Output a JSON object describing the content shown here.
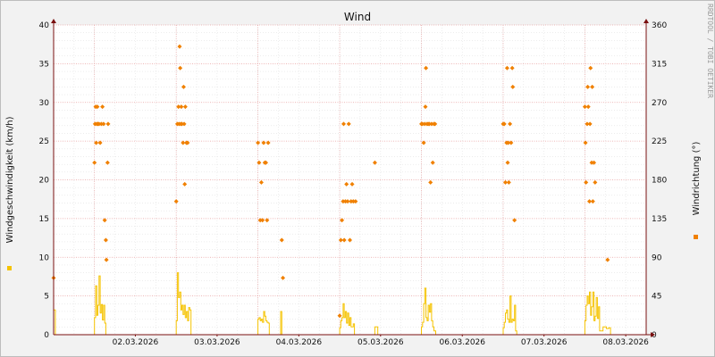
{
  "chart_data": {
    "type": "line",
    "title": "Wind",
    "watermark": "RRDTOOL / TOBI OETIKER",
    "ylabel_left": "Windgeschwindigkeit (km/h)",
    "ylabel_right": "Windrichtung (°)",
    "ylim_left": [
      0,
      40
    ],
    "ylim_right": [
      0,
      360
    ],
    "yticks_left": [
      0,
      5,
      10,
      15,
      20,
      25,
      30,
      35,
      40
    ],
    "yticks_right": [
      0,
      45,
      90,
      135,
      180,
      225,
      270,
      315,
      360
    ],
    "x_start": "01.03.2026 12:00",
    "x_end": "08.03.2026 18:00",
    "xticks": [
      "02.03.2026",
      "03.03.2026",
      "04.03.2026",
      "05.03.2026",
      "06.03.2026",
      "07.03.2026",
      "08.03.2026"
    ],
    "grid": true,
    "colors": {
      "speed": "#f5c300",
      "direction": "#f08000",
      "grid_major": "#e8a0a0",
      "grid_minor": "#e2e2e2",
      "axis": "#7a1010"
    },
    "series": [
      {
        "kind": "speed",
        "axis": "left",
        "x": [
          "01.03 12:00",
          "01.03 12:30",
          "02.03 00:00",
          "02.03 00:20",
          "02.03 00:40",
          "02.03 01:00",
          "02.03 01:20",
          "02.03 01:40",
          "02.03 02:00",
          "02.03 02:20",
          "02.03 02:40",
          "02.03 03:00",
          "02.03 03:20",
          "02.03 03:40",
          "02.03 04:00",
          "02.03 04:20",
          "02.03 04:40",
          "03.03 00:00",
          "03.03 00:20",
          "03.03 00:40",
          "03.03 01:00",
          "03.03 01:20",
          "03.03 01:40",
          "03.03 02:00",
          "03.03 02:20",
          "03.03 02:40",
          "03.03 03:00",
          "03.03 03:20",
          "03.03 03:40",
          "03.03 04:00",
          "03.03 04:20",
          "04.03 00:00",
          "04.03 00:20",
          "04.03 00:40",
          "04.03 01:00",
          "04.03 01:20",
          "04.03 01:40",
          "04.03 02:00",
          "04.03 02:20",
          "04.03 02:40",
          "04.03 03:00",
          "04.03 03:20",
          "04.03 06:40",
          "04.03 07:00",
          "05.03 00:00",
          "05.03 00:20",
          "05.03 00:40",
          "05.03 01:00",
          "05.03 01:20",
          "05.03 01:40",
          "05.03 02:00",
          "05.03 02:20",
          "05.03 02:40",
          "05.03 03:00",
          "05.03 03:20",
          "05.03 04:00",
          "05.03 04:20",
          "05.03 10:20",
          "05.03 10:40",
          "06.03 00:00",
          "06.03 00:20",
          "06.03 00:40",
          "06.03 01:00",
          "06.03 01:20",
          "06.03 01:40",
          "06.03 02:00",
          "06.03 02:20",
          "06.03 02:40",
          "06.03 03:00",
          "06.03 03:20",
          "06.03 03:40",
          "07.03 00:00",
          "07.03 00:20",
          "07.03 00:40",
          "07.03 01:00",
          "07.03 01:20",
          "07.03 01:40",
          "07.03 02:00",
          "07.03 02:20",
          "07.03 02:40",
          "07.03 03:00",
          "07.03 03:20",
          "07.03 03:40",
          "07.03 04:00",
          "08.03 00:00",
          "08.03 00:20",
          "08.03 00:40",
          "08.03 01:00",
          "08.03 01:20",
          "08.03 01:40",
          "08.03 02:00",
          "08.03 02:20",
          "08.03 02:40",
          "08.03 03:00",
          "08.03 03:20",
          "08.03 03:40",
          "08.03 04:00",
          "08.03 04:20",
          "08.03 05:20",
          "08.03 06:20",
          "08.03 07:00"
        ],
        "values": [
          3.2,
          0,
          2.2,
          6.3,
          2.5,
          3.8,
          7.6,
          2.8,
          3.9,
          1.9,
          3.8,
          1.5,
          0,
          0,
          0,
          0,
          0,
          1.8,
          8.0,
          4.8,
          5.5,
          3.2,
          3.8,
          2.6,
          3.8,
          2.2,
          3.0,
          1.8,
          3.5,
          3.2,
          0,
          2.0,
          2.2,
          1.8,
          2.0,
          1.6,
          3.0,
          2.4,
          1.8,
          1.6,
          1.5,
          0,
          3.0,
          0,
          0.9,
          1.8,
          2.2,
          4.0,
          2.2,
          3.0,
          1.5,
          2.8,
          1.2,
          2.2,
          1.0,
          1.4,
          0,
          1.0,
          1.0,
          1.0,
          1.6,
          4.0,
          6.0,
          2.2,
          1.8,
          3.8,
          2.9,
          4.0,
          1.8,
          1.0,
          0.5,
          0.9,
          1.6,
          2.8,
          3.2,
          2.0,
          1.6,
          5.0,
          1.6,
          2.0,
          1.8,
          3.8,
          0.5,
          0,
          1.8,
          3.8,
          5.0,
          4.0,
          5.5,
          2.5,
          3.6,
          5.5,
          1.8,
          2.4,
          4.8,
          2.1,
          3.6,
          0.5,
          1.0,
          0.8,
          0.9
        ]
      },
      {
        "kind": "direction",
        "axis": "right",
        "points": [
          [
            "01.03 12:00",
            66
          ],
          [
            "02.03 00:00",
            200
          ],
          [
            "02.03 00:10",
            245
          ],
          [
            "02.03 00:20",
            265
          ],
          [
            "02.03 00:30",
            223
          ],
          [
            "02.03 00:40",
            245
          ],
          [
            "02.03 00:50",
            265
          ],
          [
            "02.03 01:00",
            245
          ],
          [
            "02.03 01:20",
            245
          ],
          [
            "02.03 01:40",
            223
          ],
          [
            "02.03 02:00",
            245
          ],
          [
            "02.03 02:20",
            265
          ],
          [
            "02.03 02:40",
            245
          ],
          [
            "02.03 03:00",
            133
          ],
          [
            "02.03 03:20",
            110
          ],
          [
            "02.03 03:30",
            87
          ],
          [
            "02.03 03:50",
            200
          ],
          [
            "02.03 04:00",
            245
          ],
          [
            "03.03 00:00",
            155
          ],
          [
            "03.03 00:20",
            245
          ],
          [
            "03.03 00:40",
            265
          ],
          [
            "03.03 00:50",
            245
          ],
          [
            "03.03 01:00",
            335
          ],
          [
            "03.03 01:10",
            310
          ],
          [
            "03.03 01:20",
            245
          ],
          [
            "03.03 01:30",
            265
          ],
          [
            "03.03 01:40",
            245
          ],
          [
            "03.03 02:00",
            223
          ],
          [
            "03.03 02:10",
            288
          ],
          [
            "03.03 02:20",
            245
          ],
          [
            "03.03 02:30",
            175
          ],
          [
            "03.03 02:40",
            265
          ],
          [
            "03.03 03:00",
            223
          ],
          [
            "03.03 03:20",
            223
          ],
          [
            "04.03 00:00",
            223
          ],
          [
            "04.03 00:20",
            200
          ],
          [
            "04.03 00:40",
            133
          ],
          [
            "04.03 01:00",
            177
          ],
          [
            "04.03 01:20",
            133
          ],
          [
            "04.03 01:40",
            223
          ],
          [
            "04.03 02:00",
            200
          ],
          [
            "04.03 02:20",
            200
          ],
          [
            "04.03 02:40",
            133
          ],
          [
            "04.03 03:00",
            223
          ],
          [
            "04.03 07:00",
            110
          ],
          [
            "04.03 07:20",
            66
          ],
          [
            "05.03 00:00",
            22
          ],
          [
            "05.03 00:20",
            110
          ],
          [
            "05.03 00:40",
            133
          ],
          [
            "05.03 01:00",
            155
          ],
          [
            "05.03 01:10",
            245
          ],
          [
            "05.03 01:20",
            110
          ],
          [
            "05.03 01:40",
            155
          ],
          [
            "05.03 02:00",
            175
          ],
          [
            "05.03 02:20",
            155
          ],
          [
            "05.03 02:40",
            245
          ],
          [
            "05.03 03:00",
            110
          ],
          [
            "05.03 03:20",
            155
          ],
          [
            "05.03 03:40",
            175
          ],
          [
            "05.03 04:00",
            155
          ],
          [
            "05.03 04:40",
            155
          ],
          [
            "05.03 10:20",
            200
          ],
          [
            "06.03 00:00",
            245
          ],
          [
            "06.03 00:20",
            245
          ],
          [
            "06.03 00:40",
            223
          ],
          [
            "06.03 01:00",
            245
          ],
          [
            "06.03 01:10",
            265
          ],
          [
            "06.03 01:20",
            310
          ],
          [
            "06.03 01:40",
            245
          ],
          [
            "06.03 02:00",
            245
          ],
          [
            "06.03 02:20",
            245
          ],
          [
            "06.03 02:40",
            177
          ],
          [
            "06.03 03:00",
            245
          ],
          [
            "06.03 03:20",
            200
          ],
          [
            "06.03 03:40",
            245
          ],
          [
            "06.03 04:00",
            245
          ],
          [
            "07.03 00:00",
            245
          ],
          [
            "07.03 00:20",
            245
          ],
          [
            "07.03 00:40",
            177
          ],
          [
            "07.03 01:00",
            223
          ],
          [
            "07.03 01:10",
            310
          ],
          [
            "07.03 01:20",
            200
          ],
          [
            "07.03 01:30",
            223
          ],
          [
            "07.03 01:40",
            177
          ],
          [
            "07.03 02:00",
            245
          ],
          [
            "07.03 02:20",
            223
          ],
          [
            "07.03 02:40",
            310
          ],
          [
            "07.03 02:50",
            288
          ],
          [
            "07.03 03:20",
            133
          ],
          [
            "08.03 00:00",
            265
          ],
          [
            "08.03 00:10",
            223
          ],
          [
            "08.03 00:20",
            177
          ],
          [
            "08.03 00:40",
            245
          ],
          [
            "08.03 00:50",
            288
          ],
          [
            "08.03 01:00",
            265
          ],
          [
            "08.03 01:20",
            155
          ],
          [
            "08.03 01:30",
            245
          ],
          [
            "08.03 01:40",
            310
          ],
          [
            "08.03 02:00",
            200
          ],
          [
            "08.03 02:10",
            288
          ],
          [
            "08.03 02:20",
            155
          ],
          [
            "08.03 02:40",
            200
          ],
          [
            "08.03 03:00",
            177
          ],
          [
            "08.03 06:40",
            87
          ]
        ]
      }
    ]
  }
}
